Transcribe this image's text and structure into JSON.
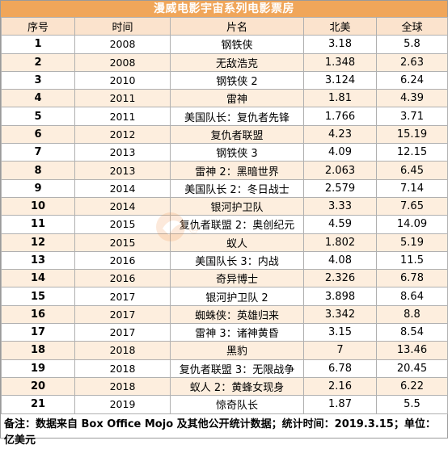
{
  "title": "漫威电影宇宙系列电影票房",
  "headers": [
    "序号",
    "时间",
    "片名",
    "北美",
    "全球"
  ],
  "rows": [
    [
      "1",
      "2008",
      "钢铁侠",
      "3.18",
      "5.8"
    ],
    [
      "2",
      "2008",
      "无敌浩克",
      "1.348",
      "2.63"
    ],
    [
      "3",
      "2010",
      "钢铁侠 2",
      "3.124",
      "6.24"
    ],
    [
      "4",
      "2011",
      "雷神",
      "1.81",
      "4.39"
    ],
    [
      "5",
      "2011",
      "美国队长：复仇者先锋",
      "1.766",
      "3.71"
    ],
    [
      "6",
      "2012",
      "复仇者联盟",
      "4.23",
      "15.19"
    ],
    [
      "7",
      "2013",
      "钢铁侠 3",
      "4.09",
      "12.15"
    ],
    [
      "8",
      "2013",
      "雷神 2：黑暗世界",
      "2.063",
      "6.45"
    ],
    [
      "9",
      "2014",
      "美国队长 2：冬日战士",
      "2.579",
      "7.14"
    ],
    [
      "10",
      "2014",
      "银河护卫队",
      "3.33",
      "7.65"
    ],
    [
      "11",
      "2015",
      "复仇者联盟 2：奥创纪元",
      "4.59",
      "14.09"
    ],
    [
      "12",
      "2015",
      "蚁人",
      "1.802",
      "5.19"
    ],
    [
      "13",
      "2016",
      "美国队长 3：内战",
      "4.08",
      "11.5"
    ],
    [
      "14",
      "2016",
      "奇异博士",
      "2.326",
      "6.78"
    ],
    [
      "15",
      "2017",
      "银河护卫队 2",
      "3.898",
      "8.64"
    ],
    [
      "16",
      "2017",
      "蜘蛛侠：英雄归来",
      "3.342",
      "8.8"
    ],
    [
      "17",
      "2017",
      "雷神 3：诸神黄昏",
      "3.15",
      "8.54"
    ],
    [
      "18",
      "2018",
      "黑豹",
      "7",
      "13.46"
    ],
    [
      "19",
      "2018",
      "复仇者联盟 3：无限战争",
      "6.78",
      "20.45"
    ],
    [
      "20",
      "2018",
      "蚁人 2：黄蜂女现身",
      "2.16",
      "6.22"
    ],
    [
      "21",
      "2019",
      "惊奇队长",
      "1.87",
      "5.5"
    ]
  ],
  "note": "备注：数据来自 Box Office Mojo 及其他公开统计数据；统计时间：2019.3.15；单位：亿美元",
  "colors": {
    "title_bg": "#f0a65a",
    "header_bg": "#fbe3cd",
    "stripe_bg": "#fdeede"
  },
  "watermark_icon": "logo-watermark-icon"
}
